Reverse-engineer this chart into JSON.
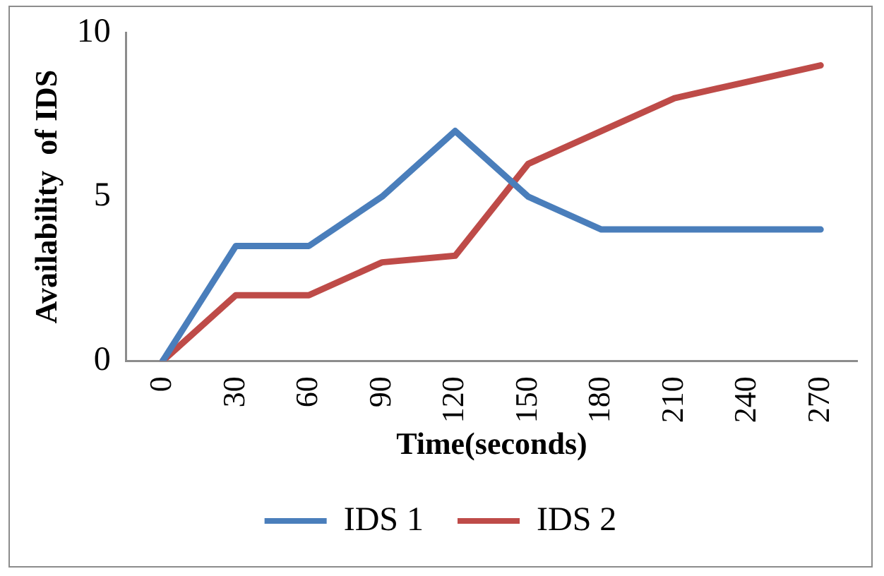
{
  "chart_data": {
    "type": "line",
    "xlabel": "Time(seconds)",
    "ylabel": "Availability  of IDS",
    "categories": [
      "0",
      "30",
      "60",
      "90",
      "120",
      "150",
      "180",
      "210",
      "240",
      "270"
    ],
    "series": [
      {
        "name": "IDS 1",
        "color": "#4a7ebb",
        "values": [
          0,
          3.5,
          3.5,
          5,
          7,
          5,
          4,
          4,
          4,
          4
        ]
      },
      {
        "name": "IDS 2",
        "color": "#be4b48",
        "values": [
          0,
          2,
          2,
          3,
          3.2,
          6,
          7,
          8,
          8.5,
          9
        ]
      }
    ],
    "ylim": [
      0,
      10
    ],
    "yticks": [
      0,
      5,
      10
    ],
    "grid": false,
    "legend": "bottom",
    "marker": "none",
    "line_style": "solid"
  }
}
